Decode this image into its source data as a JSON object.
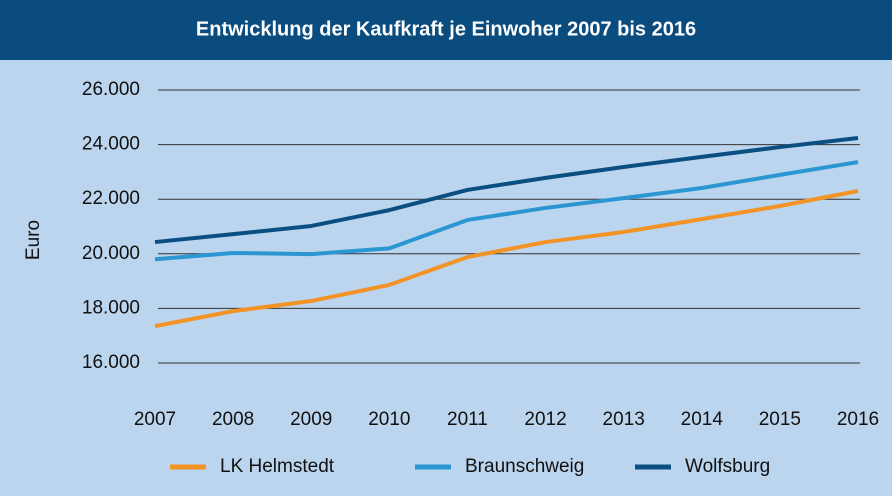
{
  "chart_data": {
    "type": "line",
    "title": "Entwicklung der Kaufkraft je Einwoher 2007 bis 2016",
    "y_label": "Euro",
    "categories": [
      "2007",
      "2008",
      "2009",
      "2010",
      "2011",
      "2012",
      "2013",
      "2014",
      "2015",
      "2016"
    ],
    "series": [
      {
        "name": "LK Helmstedt",
        "color": "#f39325",
        "values": [
          17350,
          17900,
          18270,
          18860,
          19880,
          20430,
          20800,
          21270,
          21750,
          22300
        ]
      },
      {
        "name": "Braunschweig",
        "color": "#2a96d2",
        "values": [
          19800,
          20030,
          19990,
          20200,
          21240,
          21680,
          22040,
          22410,
          22890,
          23360
        ]
      },
      {
        "name": "Wolfsburg",
        "color": "#0b4f82",
        "values": [
          20430,
          20720,
          21020,
          21600,
          22340,
          22780,
          23180,
          23550,
          23910,
          24240
        ]
      }
    ],
    "ylim": [
      16000,
      26000
    ],
    "yticks": [
      {
        "value": 16000,
        "label": "16.000"
      },
      {
        "value": 18000,
        "label": "18.000"
      },
      {
        "value": 20000,
        "label": "20.000"
      },
      {
        "value": 22000,
        "label": "22.000"
      },
      {
        "value": 24000,
        "label": "24.000"
      },
      {
        "value": 26000,
        "label": "26.000"
      }
    ],
    "grid": true
  }
}
